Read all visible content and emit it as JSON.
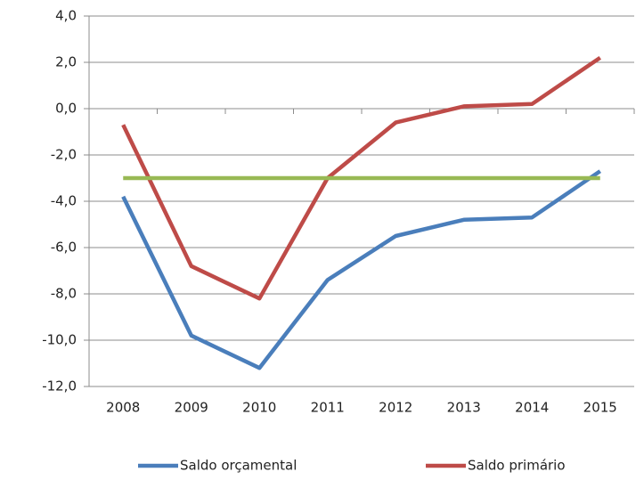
{
  "chart_data": {
    "type": "line",
    "categories": [
      "2008",
      "2009",
      "2010",
      "2011",
      "2012",
      "2013",
      "2014",
      "2015"
    ],
    "series": [
      {
        "name": "Saldo orçamental",
        "color": "#4a7ebb",
        "values": [
          -3.8,
          -9.8,
          -11.2,
          -7.4,
          -5.5,
          -4.8,
          -4.7,
          -2.7
        ]
      },
      {
        "name": "Saldo primário",
        "color": "#be4b48",
        "values": [
          -0.7,
          -6.8,
          -8.2,
          -3.0,
          -0.6,
          0.1,
          0.2,
          2.2
        ]
      },
      {
        "color": "#98b954",
        "values": [
          -3,
          -3,
          -3,
          -3,
          -3,
          -3,
          -3,
          -3
        ]
      }
    ],
    "ylim": [
      -12,
      4
    ],
    "yticks": [
      {
        "value": -12,
        "label": "-12,0"
      },
      {
        "value": -10,
        "label": "-10,0"
      },
      {
        "value": -8,
        "label": "-8,0"
      },
      {
        "value": -6,
        "label": "-6,0"
      },
      {
        "value": -4,
        "label": "-4,0"
      },
      {
        "value": -2,
        "label": "-2,0"
      },
      {
        "value": 0,
        "label": "0,0"
      },
      {
        "value": 2,
        "label": "2,0"
      },
      {
        "value": 4,
        "label": "4,0"
      }
    ],
    "grid": true,
    "legend": "bottom"
  }
}
